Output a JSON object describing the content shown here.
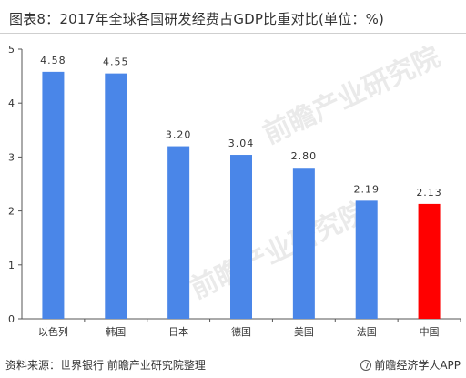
{
  "title": "图表8：2017年全球各国研发经费占GDP比重对比(单位：%)",
  "source": "资料来源：世界银行 前瞻产业研究院整理",
  "brand": "前瞻经济学人APP",
  "watermark": "前瞻产业研究院",
  "colors": {
    "bar": "#4a86e8",
    "highlight": "#ff0000",
    "axis": "#555555",
    "grid": "#e6e6e6"
  },
  "chart_data": {
    "type": "bar",
    "categories": [
      "以色列",
      "韩国",
      "日本",
      "德国",
      "美国",
      "法国",
      "中国"
    ],
    "values": [
      4.58,
      4.55,
      3.2,
      3.04,
      2.8,
      2.19,
      2.13
    ],
    "value_labels": [
      "4.58",
      "4.55",
      "3.20",
      "3.04",
      "2.80",
      "2.19",
      "2.13"
    ],
    "highlight_category": "中国",
    "y_ticks": [
      "0",
      "1",
      "2",
      "3",
      "4",
      "5"
    ],
    "ylim": [
      0,
      5
    ],
    "grid": false,
    "legend": false
  }
}
